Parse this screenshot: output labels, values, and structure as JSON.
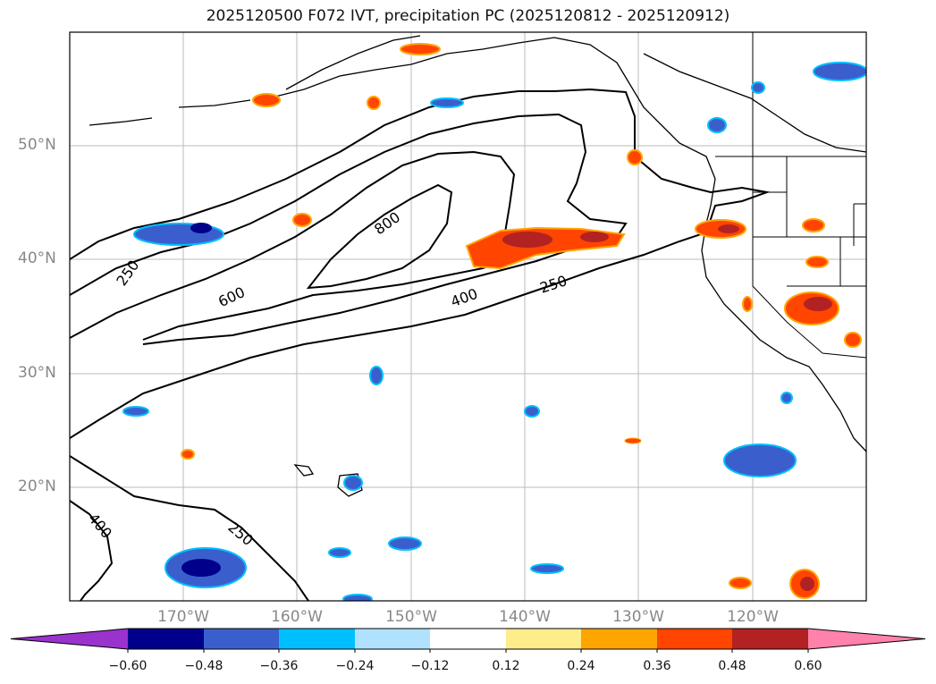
{
  "title": "2025120500 F072 IVT, precipitation PC (2025120812 - 2025120912)",
  "lat_labels": [
    "50°N",
    "40°N",
    "30°N",
    "20°N"
  ],
  "lon_labels": [
    "170°W",
    "160°W",
    "150°W",
    "140°W",
    "130°W",
    "120°W"
  ],
  "contour_labels": [
    "250",
    "600",
    "800",
    "400",
    "250",
    "400",
    "250"
  ],
  "colorbar": {
    "ticks": [
      "−0.60",
      "−0.48",
      "−0.36",
      "−0.24",
      "−0.12",
      "0.12",
      "0.24",
      "0.36",
      "0.48",
      "0.60"
    ],
    "colors": [
      "#9a32cd",
      "#00008b",
      "#3a5fcd",
      "#00bfff",
      "#b0e2ff",
      "#ffffff",
      "#ffec8b",
      "#ffa500",
      "#ff4500",
      "#b22222",
      "#ff82ab"
    ]
  }
}
